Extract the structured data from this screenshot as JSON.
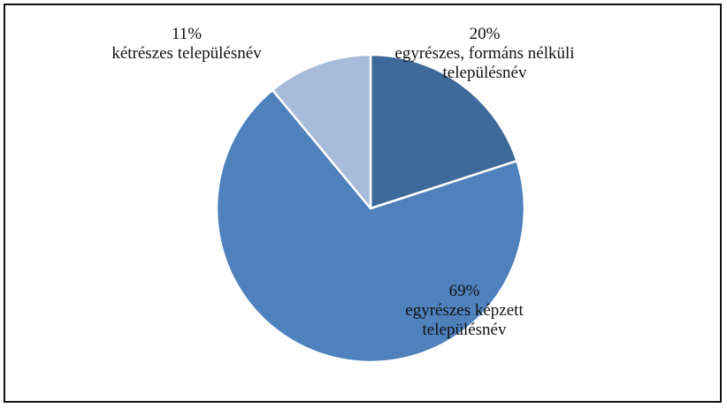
{
  "chart_data": {
    "type": "pie",
    "start_angle_deg": 0,
    "direction": "clockwise",
    "slices": [
      {
        "percent_label": "20%",
        "name_lines": [
          "egyrészes, formáns nélküli",
          "településnév"
        ],
        "value": 20,
        "color": "#3e6a9b"
      },
      {
        "percent_label": "69%",
        "name_lines": [
          "egyrészes képzett",
          "településnév"
        ],
        "value": 69,
        "color": "#4f81bd"
      },
      {
        "percent_label": "11%",
        "name_lines": [
          "kétrészes településnév"
        ],
        "value": 11,
        "color": "#a8bbd9"
      }
    ],
    "slice_border_color": "#ffffff",
    "frame_color": "#111111"
  }
}
